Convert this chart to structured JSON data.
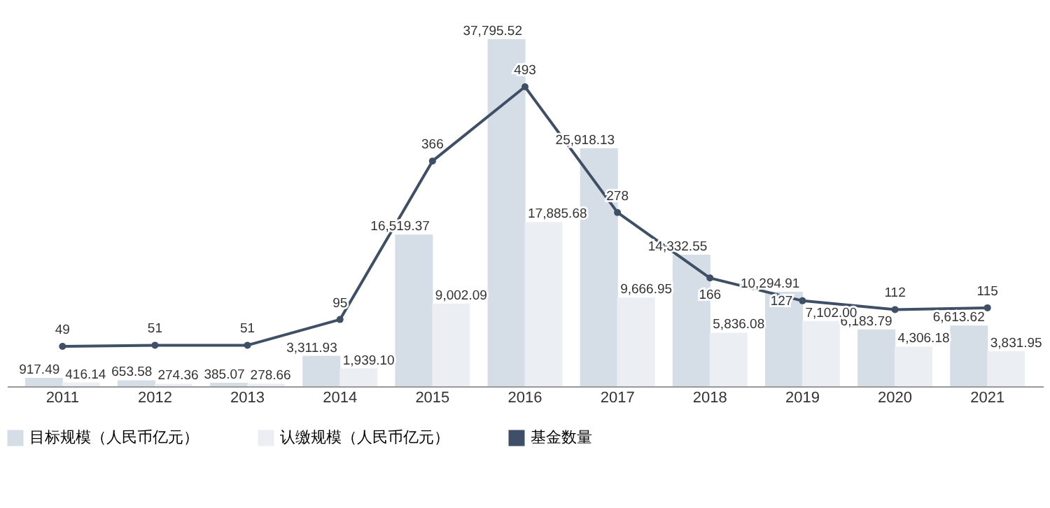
{
  "chart_data": {
    "type": "bar",
    "categories": [
      "2011",
      "2012",
      "2013",
      "2014",
      "2015",
      "2016",
      "2017",
      "2018",
      "2019",
      "2020",
      "2021"
    ],
    "series": [
      {
        "name": "目标规模（人民币亿元）",
        "color": "#d5dde7",
        "values": [
          917.49,
          653.58,
          385.07,
          3311.93,
          16519.37,
          37795.52,
          25918.13,
          14332.55,
          10294.91,
          6183.79,
          6613.62
        ],
        "value_labels": [
          "917.49",
          "653.58",
          "385.07",
          "3,311.93",
          "16,519.37",
          "37,795.52",
          "25,918.13",
          "14,332.55",
          "10,294.91",
          "6,183.79",
          "6,613.62"
        ]
      },
      {
        "name": "认缴规模（人民币亿元）",
        "color": "#ebeef2",
        "values": [
          416.14,
          274.36,
          278.66,
          1939.1,
          9002.09,
          17885.68,
          9666.95,
          5836.08,
          7102.0,
          4306.18,
          3831.95
        ],
        "value_labels": [
          "416.14",
          "274.36",
          "278.66",
          "1,939.10",
          "9,002.09",
          "17,885.68",
          "9,666.95",
          "5,836.08",
          "7,102.00",
          "4,306.18",
          "3,831.95"
        ]
      },
      {
        "name": "基金数量",
        "type": "line",
        "axis": "y2",
        "color": "#3f4f66",
        "values": [
          49,
          51,
          51,
          95,
          366,
          493,
          278,
          166,
          127,
          112,
          115
        ],
        "value_labels": [
          "49",
          "51",
          "51",
          "95",
          "366",
          "493",
          "278",
          "166",
          "127",
          "112",
          "115"
        ]
      }
    ],
    "tick_labels": "x",
    "legend": "bottom",
    "marker": "circle"
  }
}
